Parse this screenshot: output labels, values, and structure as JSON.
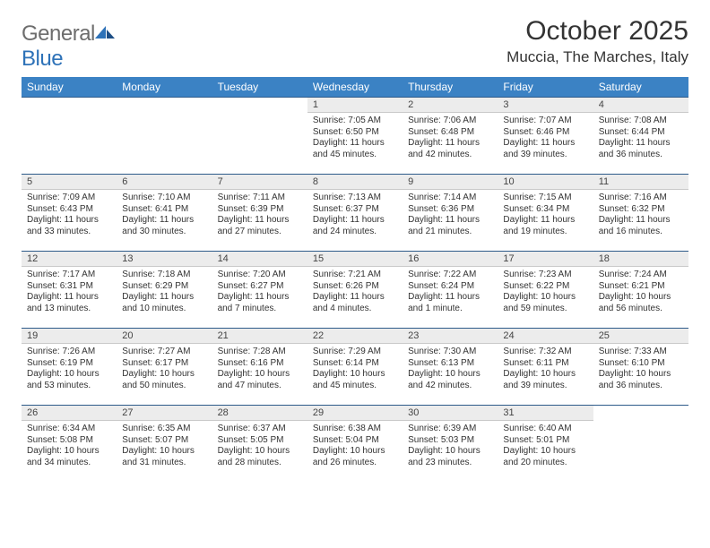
{
  "header": {
    "logo_text_a": "General",
    "logo_text_b": "Blue",
    "title": "October 2025",
    "location": "Muccia, The Marches, Italy"
  },
  "style": {
    "header_bg": "#3b82c4",
    "header_text": "#ffffff",
    "daynum_bg": "#ececec",
    "border_top": "#2e5b8a",
    "body_text": "#333333",
    "logo_gray": "#6d6d6d",
    "logo_blue": "#2e72b8"
  },
  "days_of_week": [
    "Sunday",
    "Monday",
    "Tuesday",
    "Wednesday",
    "Thursday",
    "Friday",
    "Saturday"
  ],
  "weeks": [
    [
      null,
      null,
      null,
      {
        "n": "1",
        "sr": "Sunrise: 7:05 AM",
        "ss": "Sunset: 6:50 PM",
        "dl1": "Daylight: 11 hours",
        "dl2": "and 45 minutes."
      },
      {
        "n": "2",
        "sr": "Sunrise: 7:06 AM",
        "ss": "Sunset: 6:48 PM",
        "dl1": "Daylight: 11 hours",
        "dl2": "and 42 minutes."
      },
      {
        "n": "3",
        "sr": "Sunrise: 7:07 AM",
        "ss": "Sunset: 6:46 PM",
        "dl1": "Daylight: 11 hours",
        "dl2": "and 39 minutes."
      },
      {
        "n": "4",
        "sr": "Sunrise: 7:08 AM",
        "ss": "Sunset: 6:44 PM",
        "dl1": "Daylight: 11 hours",
        "dl2": "and 36 minutes."
      }
    ],
    [
      {
        "n": "5",
        "sr": "Sunrise: 7:09 AM",
        "ss": "Sunset: 6:43 PM",
        "dl1": "Daylight: 11 hours",
        "dl2": "and 33 minutes."
      },
      {
        "n": "6",
        "sr": "Sunrise: 7:10 AM",
        "ss": "Sunset: 6:41 PM",
        "dl1": "Daylight: 11 hours",
        "dl2": "and 30 minutes."
      },
      {
        "n": "7",
        "sr": "Sunrise: 7:11 AM",
        "ss": "Sunset: 6:39 PM",
        "dl1": "Daylight: 11 hours",
        "dl2": "and 27 minutes."
      },
      {
        "n": "8",
        "sr": "Sunrise: 7:13 AM",
        "ss": "Sunset: 6:37 PM",
        "dl1": "Daylight: 11 hours",
        "dl2": "and 24 minutes."
      },
      {
        "n": "9",
        "sr": "Sunrise: 7:14 AM",
        "ss": "Sunset: 6:36 PM",
        "dl1": "Daylight: 11 hours",
        "dl2": "and 21 minutes."
      },
      {
        "n": "10",
        "sr": "Sunrise: 7:15 AM",
        "ss": "Sunset: 6:34 PM",
        "dl1": "Daylight: 11 hours",
        "dl2": "and 19 minutes."
      },
      {
        "n": "11",
        "sr": "Sunrise: 7:16 AM",
        "ss": "Sunset: 6:32 PM",
        "dl1": "Daylight: 11 hours",
        "dl2": "and 16 minutes."
      }
    ],
    [
      {
        "n": "12",
        "sr": "Sunrise: 7:17 AM",
        "ss": "Sunset: 6:31 PM",
        "dl1": "Daylight: 11 hours",
        "dl2": "and 13 minutes."
      },
      {
        "n": "13",
        "sr": "Sunrise: 7:18 AM",
        "ss": "Sunset: 6:29 PM",
        "dl1": "Daylight: 11 hours",
        "dl2": "and 10 minutes."
      },
      {
        "n": "14",
        "sr": "Sunrise: 7:20 AM",
        "ss": "Sunset: 6:27 PM",
        "dl1": "Daylight: 11 hours",
        "dl2": "and 7 minutes."
      },
      {
        "n": "15",
        "sr": "Sunrise: 7:21 AM",
        "ss": "Sunset: 6:26 PM",
        "dl1": "Daylight: 11 hours",
        "dl2": "and 4 minutes."
      },
      {
        "n": "16",
        "sr": "Sunrise: 7:22 AM",
        "ss": "Sunset: 6:24 PM",
        "dl1": "Daylight: 11 hours",
        "dl2": "and 1 minute."
      },
      {
        "n": "17",
        "sr": "Sunrise: 7:23 AM",
        "ss": "Sunset: 6:22 PM",
        "dl1": "Daylight: 10 hours",
        "dl2": "and 59 minutes."
      },
      {
        "n": "18",
        "sr": "Sunrise: 7:24 AM",
        "ss": "Sunset: 6:21 PM",
        "dl1": "Daylight: 10 hours",
        "dl2": "and 56 minutes."
      }
    ],
    [
      {
        "n": "19",
        "sr": "Sunrise: 7:26 AM",
        "ss": "Sunset: 6:19 PM",
        "dl1": "Daylight: 10 hours",
        "dl2": "and 53 minutes."
      },
      {
        "n": "20",
        "sr": "Sunrise: 7:27 AM",
        "ss": "Sunset: 6:17 PM",
        "dl1": "Daylight: 10 hours",
        "dl2": "and 50 minutes."
      },
      {
        "n": "21",
        "sr": "Sunrise: 7:28 AM",
        "ss": "Sunset: 6:16 PM",
        "dl1": "Daylight: 10 hours",
        "dl2": "and 47 minutes."
      },
      {
        "n": "22",
        "sr": "Sunrise: 7:29 AM",
        "ss": "Sunset: 6:14 PM",
        "dl1": "Daylight: 10 hours",
        "dl2": "and 45 minutes."
      },
      {
        "n": "23",
        "sr": "Sunrise: 7:30 AM",
        "ss": "Sunset: 6:13 PM",
        "dl1": "Daylight: 10 hours",
        "dl2": "and 42 minutes."
      },
      {
        "n": "24",
        "sr": "Sunrise: 7:32 AM",
        "ss": "Sunset: 6:11 PM",
        "dl1": "Daylight: 10 hours",
        "dl2": "and 39 minutes."
      },
      {
        "n": "25",
        "sr": "Sunrise: 7:33 AM",
        "ss": "Sunset: 6:10 PM",
        "dl1": "Daylight: 10 hours",
        "dl2": "and 36 minutes."
      }
    ],
    [
      {
        "n": "26",
        "sr": "Sunrise: 6:34 AM",
        "ss": "Sunset: 5:08 PM",
        "dl1": "Daylight: 10 hours",
        "dl2": "and 34 minutes."
      },
      {
        "n": "27",
        "sr": "Sunrise: 6:35 AM",
        "ss": "Sunset: 5:07 PM",
        "dl1": "Daylight: 10 hours",
        "dl2": "and 31 minutes."
      },
      {
        "n": "28",
        "sr": "Sunrise: 6:37 AM",
        "ss": "Sunset: 5:05 PM",
        "dl1": "Daylight: 10 hours",
        "dl2": "and 28 minutes."
      },
      {
        "n": "29",
        "sr": "Sunrise: 6:38 AM",
        "ss": "Sunset: 5:04 PM",
        "dl1": "Daylight: 10 hours",
        "dl2": "and 26 minutes."
      },
      {
        "n": "30",
        "sr": "Sunrise: 6:39 AM",
        "ss": "Sunset: 5:03 PM",
        "dl1": "Daylight: 10 hours",
        "dl2": "and 23 minutes."
      },
      {
        "n": "31",
        "sr": "Sunrise: 6:40 AM",
        "ss": "Sunset: 5:01 PM",
        "dl1": "Daylight: 10 hours",
        "dl2": "and 20 minutes."
      },
      null
    ]
  ]
}
